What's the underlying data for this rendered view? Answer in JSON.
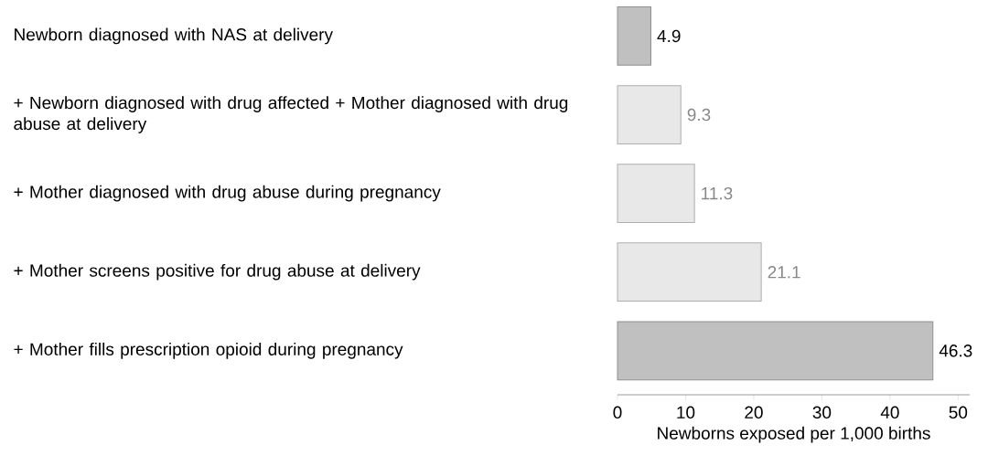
{
  "chart_data": {
    "type": "bar",
    "orientation": "horizontal",
    "categories": [
      "Newborn diagnosed with NAS at delivery",
      "+ Newborn diagnosed with drug affected + Mother diagnosed with drug abuse at delivery",
      "+ Mother diagnosed with drug abuse during pregnancy",
      "+ Mother screens positive for drug abuse at delivery",
      "+ Mother fills prescription opioid during pregnancy"
    ],
    "values": [
      4.9,
      9.3,
      11.3,
      21.1,
      46.3
    ],
    "colors": [
      "#c0c0c0",
      "#e8e8e8",
      "#e8e8e8",
      "#e8e8e8",
      "#c0c0c0"
    ],
    "data_labels": true,
    "xlabel": "Newborns exposed per 1,000 births",
    "xlim": [
      0,
      51.7
    ],
    "xticks": [
      0,
      10,
      20,
      30,
      40,
      50
    ]
  }
}
